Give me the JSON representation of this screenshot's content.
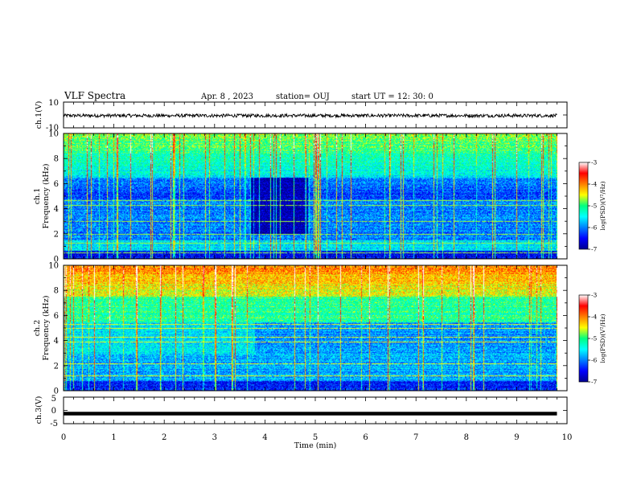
{
  "header": {
    "title": "VLF Spectra",
    "date": "Apr. 8 , 2023",
    "station": "station= OUJ",
    "start": "start UT = 12: 30: 0"
  },
  "colors": {
    "spectrogram_low": "#00008f",
    "spectrogram_mid": "#00ff80",
    "spectrogram_high": "#ff0000",
    "waveform": "#000000"
  },
  "chart_data": [
    {
      "type": "line",
      "panel": "ch1-waveform",
      "ylabel": "ch.1(V)",
      "ylim": [
        -10,
        10
      ],
      "yticks": [
        "10",
        "-10"
      ],
      "x_range": [
        0,
        9.8
      ],
      "mean_value": -0.5,
      "amplitude": 1.3
    },
    {
      "type": "heatmap",
      "panel": "ch1-spectrogram",
      "ylabel": "ch.1\nFrequency (kHz)",
      "ylim": [
        0,
        10
      ],
      "yticks": [
        "0",
        "2",
        "4",
        "6",
        "8",
        "10"
      ],
      "colorbar": {
        "label": "log(PSD)(V²/Hz)",
        "ticks": [
          "-3",
          "-4",
          "-5",
          "-6",
          "-7"
        ],
        "range": [
          -7,
          -3
        ]
      },
      "dark_band_minutes": [
        3.7,
        4.85
      ],
      "line_freqs_khz": [
        0.5,
        1.3,
        2.0,
        3.0,
        4.3,
        4.7
      ]
    },
    {
      "type": "heatmap",
      "panel": "ch2-spectrogram",
      "ylabel": "ch.2\nFrequency (kHz)",
      "ylim": [
        0,
        10
      ],
      "yticks": [
        "0",
        "2",
        "4",
        "6",
        "8",
        "10"
      ],
      "colorbar": {
        "label": "log(PSD)(V²/Hz)",
        "ticks": [
          "-3",
          "-4",
          "-5",
          "-6",
          "-7"
        ],
        "range": [
          -7,
          -3
        ]
      },
      "line_freqs_khz": [
        1.2,
        2.2,
        3.9,
        4.3,
        5.0,
        5.3
      ]
    },
    {
      "type": "line",
      "panel": "ch3-waveform",
      "ylabel": "ch.3(V)",
      "ylim": [
        -5,
        5
      ],
      "yticks": [
        "5",
        "0",
        "-5"
      ],
      "x_range": [
        0,
        9.8
      ],
      "constant_value": -1.2
    }
  ],
  "xaxis": {
    "label": "Time (min)",
    "range": [
      0,
      10
    ],
    "ticks": [
      "0",
      "1",
      "2",
      "3",
      "4",
      "5",
      "6",
      "7",
      "8",
      "9",
      "10"
    ]
  }
}
